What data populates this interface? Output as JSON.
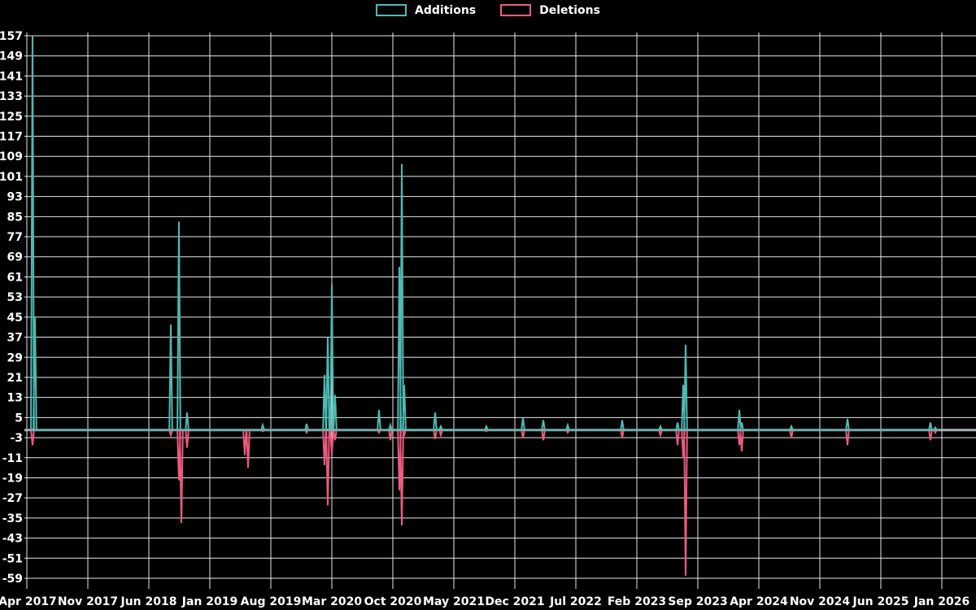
{
  "legend": {
    "additions_label": "Additions",
    "deletions_label": "Deletions"
  },
  "colors": {
    "background": "#000000",
    "additions": "#4cbcb4",
    "deletions": "#ee5b80",
    "grid": "#e8e8e8",
    "zero_line": "#a9b2b4",
    "text": "#ffffff"
  },
  "chart_data": {
    "type": "line",
    "legend_position": "top-center",
    "grid": "on",
    "x_axis": {
      "tick_labels": [
        "Apr 2017",
        "Nov 2017",
        "Jun 2018",
        "Jan 2019",
        "Aug 2019",
        "Mar 2020",
        "Oct 2020",
        "May 2021",
        "Dec 2021",
        "Jul 2022",
        "Feb 2023",
        "Sep 2023",
        "Apr 2024",
        "Nov 2024",
        "Jun 2025",
        "Jan 2026"
      ],
      "tick_interval_months": 7
    },
    "y_axis": {
      "min": -59,
      "max": 157,
      "step": 8,
      "ticks": [
        157,
        149,
        141,
        133,
        125,
        117,
        109,
        101,
        93,
        85,
        77,
        69,
        61,
        53,
        45,
        37,
        29,
        21,
        13,
        5,
        -3,
        -11,
        -19,
        -27,
        -35,
        -43,
        -51,
        -59
      ]
    },
    "series": [
      {
        "name": "Additions",
        "key": "additions"
      },
      {
        "name": "Deletions",
        "key": "deletions"
      }
    ],
    "baseline_span_months": [
      0.4,
      104.7
    ],
    "events": [
      {
        "date": "2017-04",
        "month": 0.65,
        "additions": 157,
        "deletions": -6
      },
      {
        "date": "2017-05",
        "month": 0.93,
        "additions": 45,
        "deletions": 0
      },
      {
        "date": "2018-08",
        "month": 16.52,
        "additions": 42,
        "deletions": -2
      },
      {
        "date": "2018-09",
        "month": 17.45,
        "additions": 83,
        "deletions": -20
      },
      {
        "date": "2018-09",
        "month": 17.73,
        "additions": 0,
        "deletions": -37
      },
      {
        "date": "2018-10",
        "month": 18.39,
        "additions": 7,
        "deletions": -7
      },
      {
        "date": "2019-05",
        "month": 25.01,
        "additions": 0,
        "deletions": -10
      },
      {
        "date": "2019-05",
        "month": 25.39,
        "additions": 0,
        "deletions": -15
      },
      {
        "date": "2019-07",
        "month": 27.07,
        "additions": 2,
        "deletions": -0.5
      },
      {
        "date": "2019-12",
        "month": 32.11,
        "additions": 2.5,
        "deletions": -1
      },
      {
        "date": "2020-02",
        "month": 34.16,
        "additions": 22,
        "deletions": -14
      },
      {
        "date": "2020-02",
        "month": 34.53,
        "additions": 37,
        "deletions": -30
      },
      {
        "date": "2020-03",
        "month": 35.0,
        "additions": 58,
        "deletions": -10
      },
      {
        "date": "2020-03",
        "month": 35.37,
        "additions": 14,
        "deletions": -4
      },
      {
        "date": "2020-08",
        "month": 40.41,
        "additions": 8,
        "deletions": -1
      },
      {
        "date": "2020-09",
        "month": 41.72,
        "additions": 2,
        "deletions": -4
      },
      {
        "date": "2020-10",
        "month": 42.75,
        "additions": 65,
        "deletions": -24
      },
      {
        "date": "2020-11",
        "month": 43.03,
        "additions": 106,
        "deletions": -38
      },
      {
        "date": "2020-11",
        "month": 43.31,
        "additions": 18,
        "deletions": -2
      },
      {
        "date": "2021-02",
        "month": 46.85,
        "additions": 7,
        "deletions": -3.5
      },
      {
        "date": "2021-03",
        "month": 47.51,
        "additions": 1.5,
        "deletions": -2
      },
      {
        "date": "2021-08",
        "month": 52.73,
        "additions": 1.5,
        "deletions": -0.5
      },
      {
        "date": "2022-01",
        "month": 56.93,
        "additions": 5,
        "deletions": -3
      },
      {
        "date": "2022-03",
        "month": 59.27,
        "additions": 4,
        "deletions": -4
      },
      {
        "date": "2022-06",
        "month": 62.07,
        "additions": 2,
        "deletions": -1
      },
      {
        "date": "2022-12",
        "month": 68.32,
        "additions": 4,
        "deletions": -3
      },
      {
        "date": "2023-04",
        "month": 72.71,
        "additions": 1.5,
        "deletions": -2
      },
      {
        "date": "2023-06",
        "month": 74.67,
        "additions": 3,
        "deletions": -6
      },
      {
        "date": "2023-07",
        "month": 75.32,
        "additions": 18,
        "deletions": -11
      },
      {
        "date": "2023-08",
        "month": 75.6,
        "additions": 34,
        "deletions": -58
      },
      {
        "date": "2024-02",
        "month": 81.76,
        "additions": 8,
        "deletions": -6
      },
      {
        "date": "2024-02",
        "month": 82.04,
        "additions": 3,
        "deletions": -8.5
      },
      {
        "date": "2024-08",
        "month": 87.73,
        "additions": 1.5,
        "deletions": -3
      },
      {
        "date": "2025-02",
        "month": 94.17,
        "additions": 4.5,
        "deletions": -6
      },
      {
        "date": "2025-11",
        "month": 103.69,
        "additions": 3,
        "deletions": -4
      },
      {
        "date": "2025-12",
        "month": 104.25,
        "additions": 1,
        "deletions": -1
      }
    ]
  }
}
